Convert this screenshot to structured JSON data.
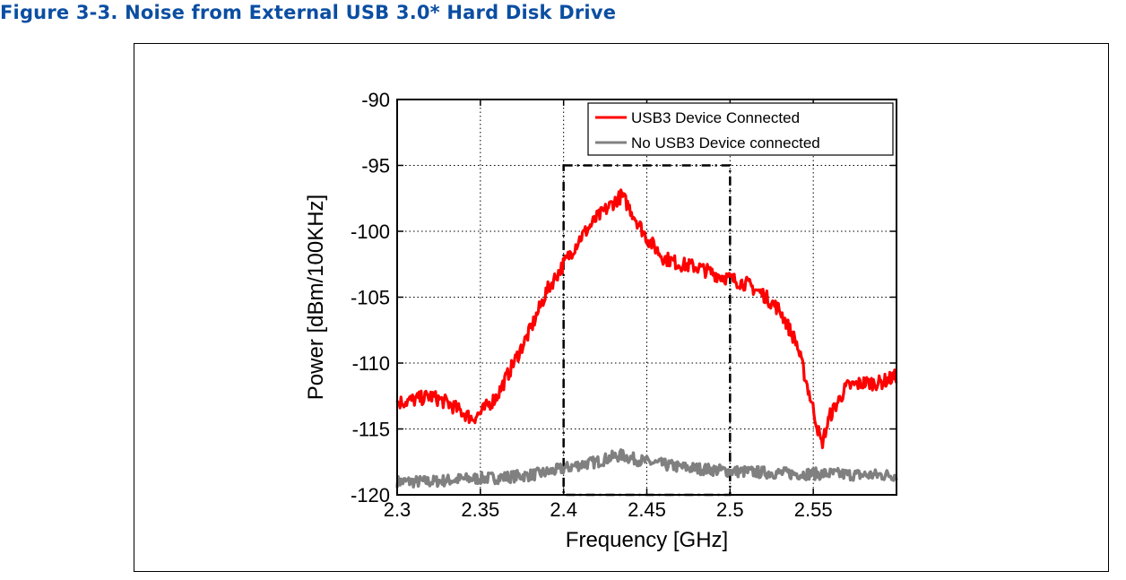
{
  "caption": "Figure 3-3. Noise from External USB 3.0* Hard Disk Drive",
  "chart_data": {
    "type": "line",
    "xlabel": "Frequency [GHz]",
    "ylabel": "Power [dBm/100KHz]",
    "xlim": [
      2.3,
      2.6
    ],
    "ylim": [
      -120,
      -90
    ],
    "xticks": [
      2.3,
      2.35,
      2.4,
      2.45,
      2.5,
      2.55
    ],
    "xtick_labels": [
      "2.3",
      "2.35",
      "2.4",
      "2.45",
      "2.5",
      "2.55"
    ],
    "yticks": [
      -90,
      -95,
      -100,
      -105,
      -110,
      -115,
      -120
    ],
    "ytick_labels": [
      "-90",
      "-95",
      "-100",
      "-105",
      "-110",
      "-115",
      "-120"
    ],
    "grid": true,
    "legend_position": "top-right",
    "highlight_box": {
      "x": [
        2.4,
        2.5
      ],
      "y": [
        -120,
        -95
      ]
    },
    "series": [
      {
        "name": "USB3 Device Connected",
        "color": "#ff0000",
        "x": [
          2.3,
          2.31,
          2.32,
          2.33,
          2.34,
          2.345,
          2.35,
          2.36,
          2.37,
          2.38,
          2.39,
          2.4,
          2.41,
          2.42,
          2.43,
          2.435,
          2.44,
          2.45,
          2.46,
          2.47,
          2.48,
          2.49,
          2.5,
          2.51,
          2.52,
          2.53,
          2.54,
          2.55,
          2.555,
          2.56,
          2.57,
          2.58,
          2.59,
          2.6
        ],
        "y": [
          -113.0,
          -112.8,
          -112.5,
          -113.0,
          -113.8,
          -114.2,
          -113.8,
          -112.5,
          -110.0,
          -107.5,
          -104.5,
          -102.5,
          -100.5,
          -99.0,
          -97.8,
          -97.3,
          -98.3,
          -100.5,
          -102.0,
          -102.5,
          -102.7,
          -103.2,
          -103.6,
          -104.0,
          -104.8,
          -106.0,
          -108.5,
          -113.5,
          -116.2,
          -114.0,
          -111.8,
          -111.5,
          -111.5,
          -111.0
        ]
      },
      {
        "name": "No USB3 Device connected",
        "color": "#808080",
        "x": [
          2.3,
          2.32,
          2.34,
          2.36,
          2.38,
          2.39,
          2.4,
          2.41,
          2.42,
          2.43,
          2.435,
          2.44,
          2.45,
          2.46,
          2.47,
          2.48,
          2.5,
          2.52,
          2.54,
          2.56,
          2.58,
          2.6
        ],
        "y": [
          -119.0,
          -119.0,
          -118.8,
          -118.7,
          -118.5,
          -118.3,
          -118.0,
          -117.7,
          -117.5,
          -117.1,
          -117.0,
          -117.2,
          -117.5,
          -117.7,
          -117.9,
          -118.0,
          -118.2,
          -118.3,
          -118.4,
          -118.4,
          -118.5,
          -118.5
        ]
      }
    ]
  }
}
